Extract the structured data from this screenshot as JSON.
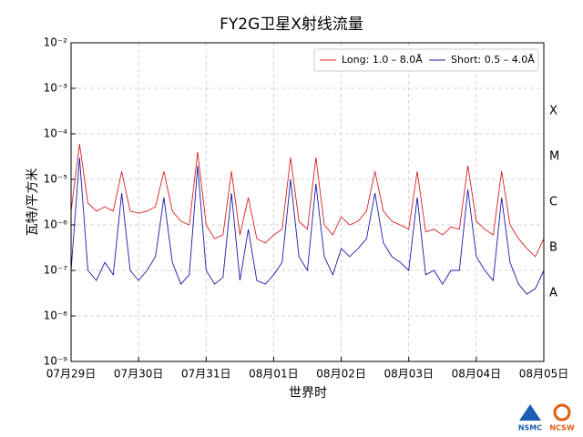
{
  "chart_data": {
    "type": "line",
    "title": "FY2G卫星X射线流量",
    "x_label": "世界时",
    "y_label": "瓦特/平方米",
    "log_y": true,
    "grid": true,
    "legend_position": "upper right",
    "xlim": [
      0,
      7
    ],
    "xticks": [
      {
        "value": 0,
        "label": "07月29日"
      },
      {
        "value": 1,
        "label": "07月30日"
      },
      {
        "value": 2,
        "label": "07月31日"
      },
      {
        "value": 3,
        "label": "08月01日"
      },
      {
        "value": 4,
        "label": "08月02日"
      },
      {
        "value": 5,
        "label": "08月03日"
      },
      {
        "value": 6,
        "label": "08月04日"
      },
      {
        "value": 7,
        "label": "08月05日"
      }
    ],
    "ylim": [
      1e-09,
      0.01
    ],
    "yticks": [
      {
        "value": 1e-09,
        "label": "10⁻⁹"
      },
      {
        "value": 1e-08,
        "label": "10⁻⁸"
      },
      {
        "value": 1e-07,
        "label": "10⁻⁷"
      },
      {
        "value": 1e-06,
        "label": "10⁻⁶"
      },
      {
        "value": 1e-05,
        "label": "10⁻⁵"
      },
      {
        "value": 0.0001,
        "label": "10⁻⁴"
      },
      {
        "value": 0.001,
        "label": "10⁻³"
      },
      {
        "value": 0.01,
        "label": "10⁻²"
      }
    ],
    "class_labels": [
      {
        "value": 0.0001,
        "label": "X"
      },
      {
        "value": 1e-05,
        "label": "M"
      },
      {
        "value": 1e-06,
        "label": "C"
      },
      {
        "value": 1e-07,
        "label": "B"
      },
      {
        "value": 1e-08,
        "label": "A"
      }
    ],
    "x": [
      0,
      0.125,
      0.25,
      0.375,
      0.5,
      0.625,
      0.75,
      0.875,
      1,
      1.125,
      1.25,
      1.375,
      1.5,
      1.625,
      1.75,
      1.875,
      2,
      2.125,
      2.25,
      2.375,
      2.5,
      2.625,
      2.75,
      2.875,
      3,
      3.125,
      3.25,
      3.375,
      3.5,
      3.625,
      3.75,
      3.875,
      4,
      4.125,
      4.25,
      4.375,
      4.5,
      4.625,
      4.75,
      4.875,
      5,
      5.125,
      5.25,
      5.375,
      5.5,
      5.625,
      5.75,
      5.875,
      6,
      6.125,
      6.25,
      6.375,
      6.5,
      6.625,
      6.75,
      6.875,
      7
    ],
    "series": [
      {
        "name": "Long: 1.0 – 8.0Å",
        "color": "#d62020",
        "values": [
          2e-06,
          6e-05,
          3e-06,
          2e-06,
          2.5e-06,
          2e-06,
          1.5e-05,
          2e-06,
          1.8e-06,
          2e-06,
          2.5e-06,
          1.5e-05,
          2e-06,
          1.2e-06,
          1e-06,
          4e-05,
          1e-06,
          5e-07,
          6e-07,
          1.5e-05,
          6e-07,
          4e-06,
          5e-07,
          4e-07,
          6e-07,
          8e-07,
          3e-05,
          1.2e-06,
          8e-07,
          3e-05,
          1e-06,
          6e-07,
          1.5e-06,
          1e-06,
          1.2e-06,
          2e-06,
          1.5e-05,
          2e-06,
          1.2e-06,
          1e-06,
          8e-07,
          1.5e-05,
          7e-07,
          8e-07,
          6e-07,
          9e-07,
          8e-07,
          2e-05,
          1.2e-06,
          8e-07,
          6e-07,
          1.5e-05,
          1e-06,
          5e-07,
          3e-07,
          2e-07,
          5e-07
        ]
      },
      {
        "name": "Short: 0.5 – 4.0Å",
        "color": "#1a1aa8",
        "values": [
          1e-07,
          3e-05,
          1e-07,
          6e-08,
          1.5e-07,
          8e-08,
          5e-06,
          1e-07,
          6e-08,
          1e-07,
          2e-07,
          4e-06,
          1.5e-07,
          5e-08,
          8e-08,
          2e-05,
          1e-07,
          5e-08,
          7e-08,
          5e-06,
          6e-08,
          8e-07,
          6e-08,
          5e-08,
          8e-08,
          1.5e-07,
          1e-05,
          2e-07,
          1e-07,
          8e-06,
          2e-07,
          8e-08,
          3e-07,
          2e-07,
          3e-07,
          5e-07,
          5e-06,
          4e-07,
          2e-07,
          1.5e-07,
          1e-07,
          4e-06,
          8e-08,
          1e-07,
          5e-08,
          1e-07,
          1e-07,
          6e-06,
          2e-07,
          1e-07,
          6e-08,
          4e-06,
          1.5e-07,
          5e-08,
          3e-08,
          4e-08,
          1e-07
        ]
      }
    ]
  },
  "logos": [
    "NSMC",
    "NCSW"
  ]
}
